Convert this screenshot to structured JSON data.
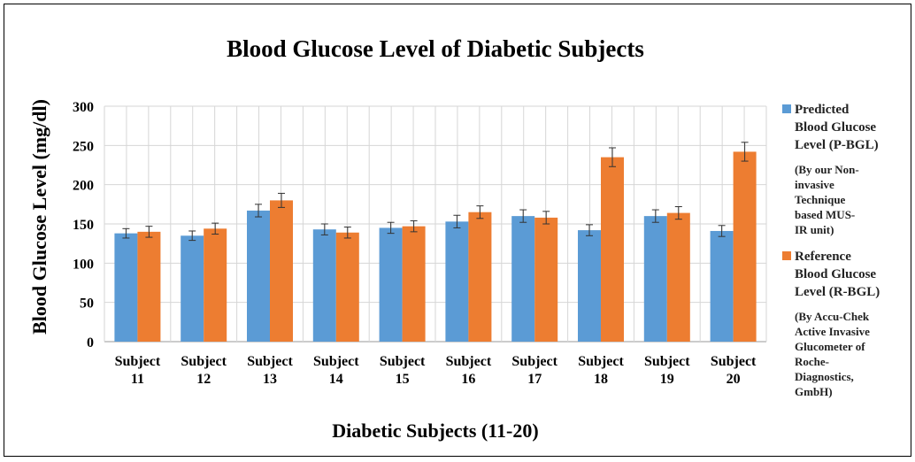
{
  "chart_data": {
    "type": "bar",
    "title": "Blood Glucose Level of Diabetic Subjects",
    "xlabel": "Diabetic Subjects (11-20)",
    "ylabel": "Blood Glucose Level (mg/dl)",
    "ylim": [
      0,
      300
    ],
    "yticks": [
      "0",
      "50",
      "100",
      "150",
      "200",
      "250",
      "300"
    ],
    "grid": true,
    "legend_position": "right",
    "categories": [
      [
        "Subject",
        "11"
      ],
      [
        "Subject",
        "12"
      ],
      [
        "Subject",
        "13"
      ],
      [
        "Subject",
        "14"
      ],
      [
        "Subject",
        "15"
      ],
      [
        "Subject",
        "16"
      ],
      [
        "Subject",
        "17"
      ],
      [
        "Subject",
        "18"
      ],
      [
        "Subject",
        "19"
      ],
      [
        "Subject",
        "20"
      ]
    ],
    "series": [
      {
        "name_lines": [
          "Predicted",
          "Blood Glucose",
          "Level (P-BGL)"
        ],
        "note_lines": [
          "(By our Non-",
          "invasive",
          "Technique",
          "based MUS-",
          "IR unit)"
        ],
        "color": "#5b9bd5",
        "values": [
          138,
          135,
          167,
          143,
          145,
          153,
          160,
          142,
          160,
          141
        ],
        "errors": [
          6,
          6,
          8,
          7,
          7,
          8,
          8,
          7,
          8,
          7
        ]
      },
      {
        "name_lines": [
          "Reference",
          "Blood Glucose",
          "Level (R-BGL)"
        ],
        "note_lines": [
          "(By Accu-Chek",
          "Active Invasive",
          "Glucometer of",
          "Roche-",
          "Diagnostics,",
          "GmbH)"
        ],
        "color": "#ed7d31",
        "values": [
          140,
          144,
          180,
          139,
          147,
          165,
          158,
          235,
          164,
          242
        ],
        "errors": [
          7,
          7,
          9,
          7,
          7,
          8,
          8,
          12,
          8,
          12
        ]
      }
    ]
  }
}
